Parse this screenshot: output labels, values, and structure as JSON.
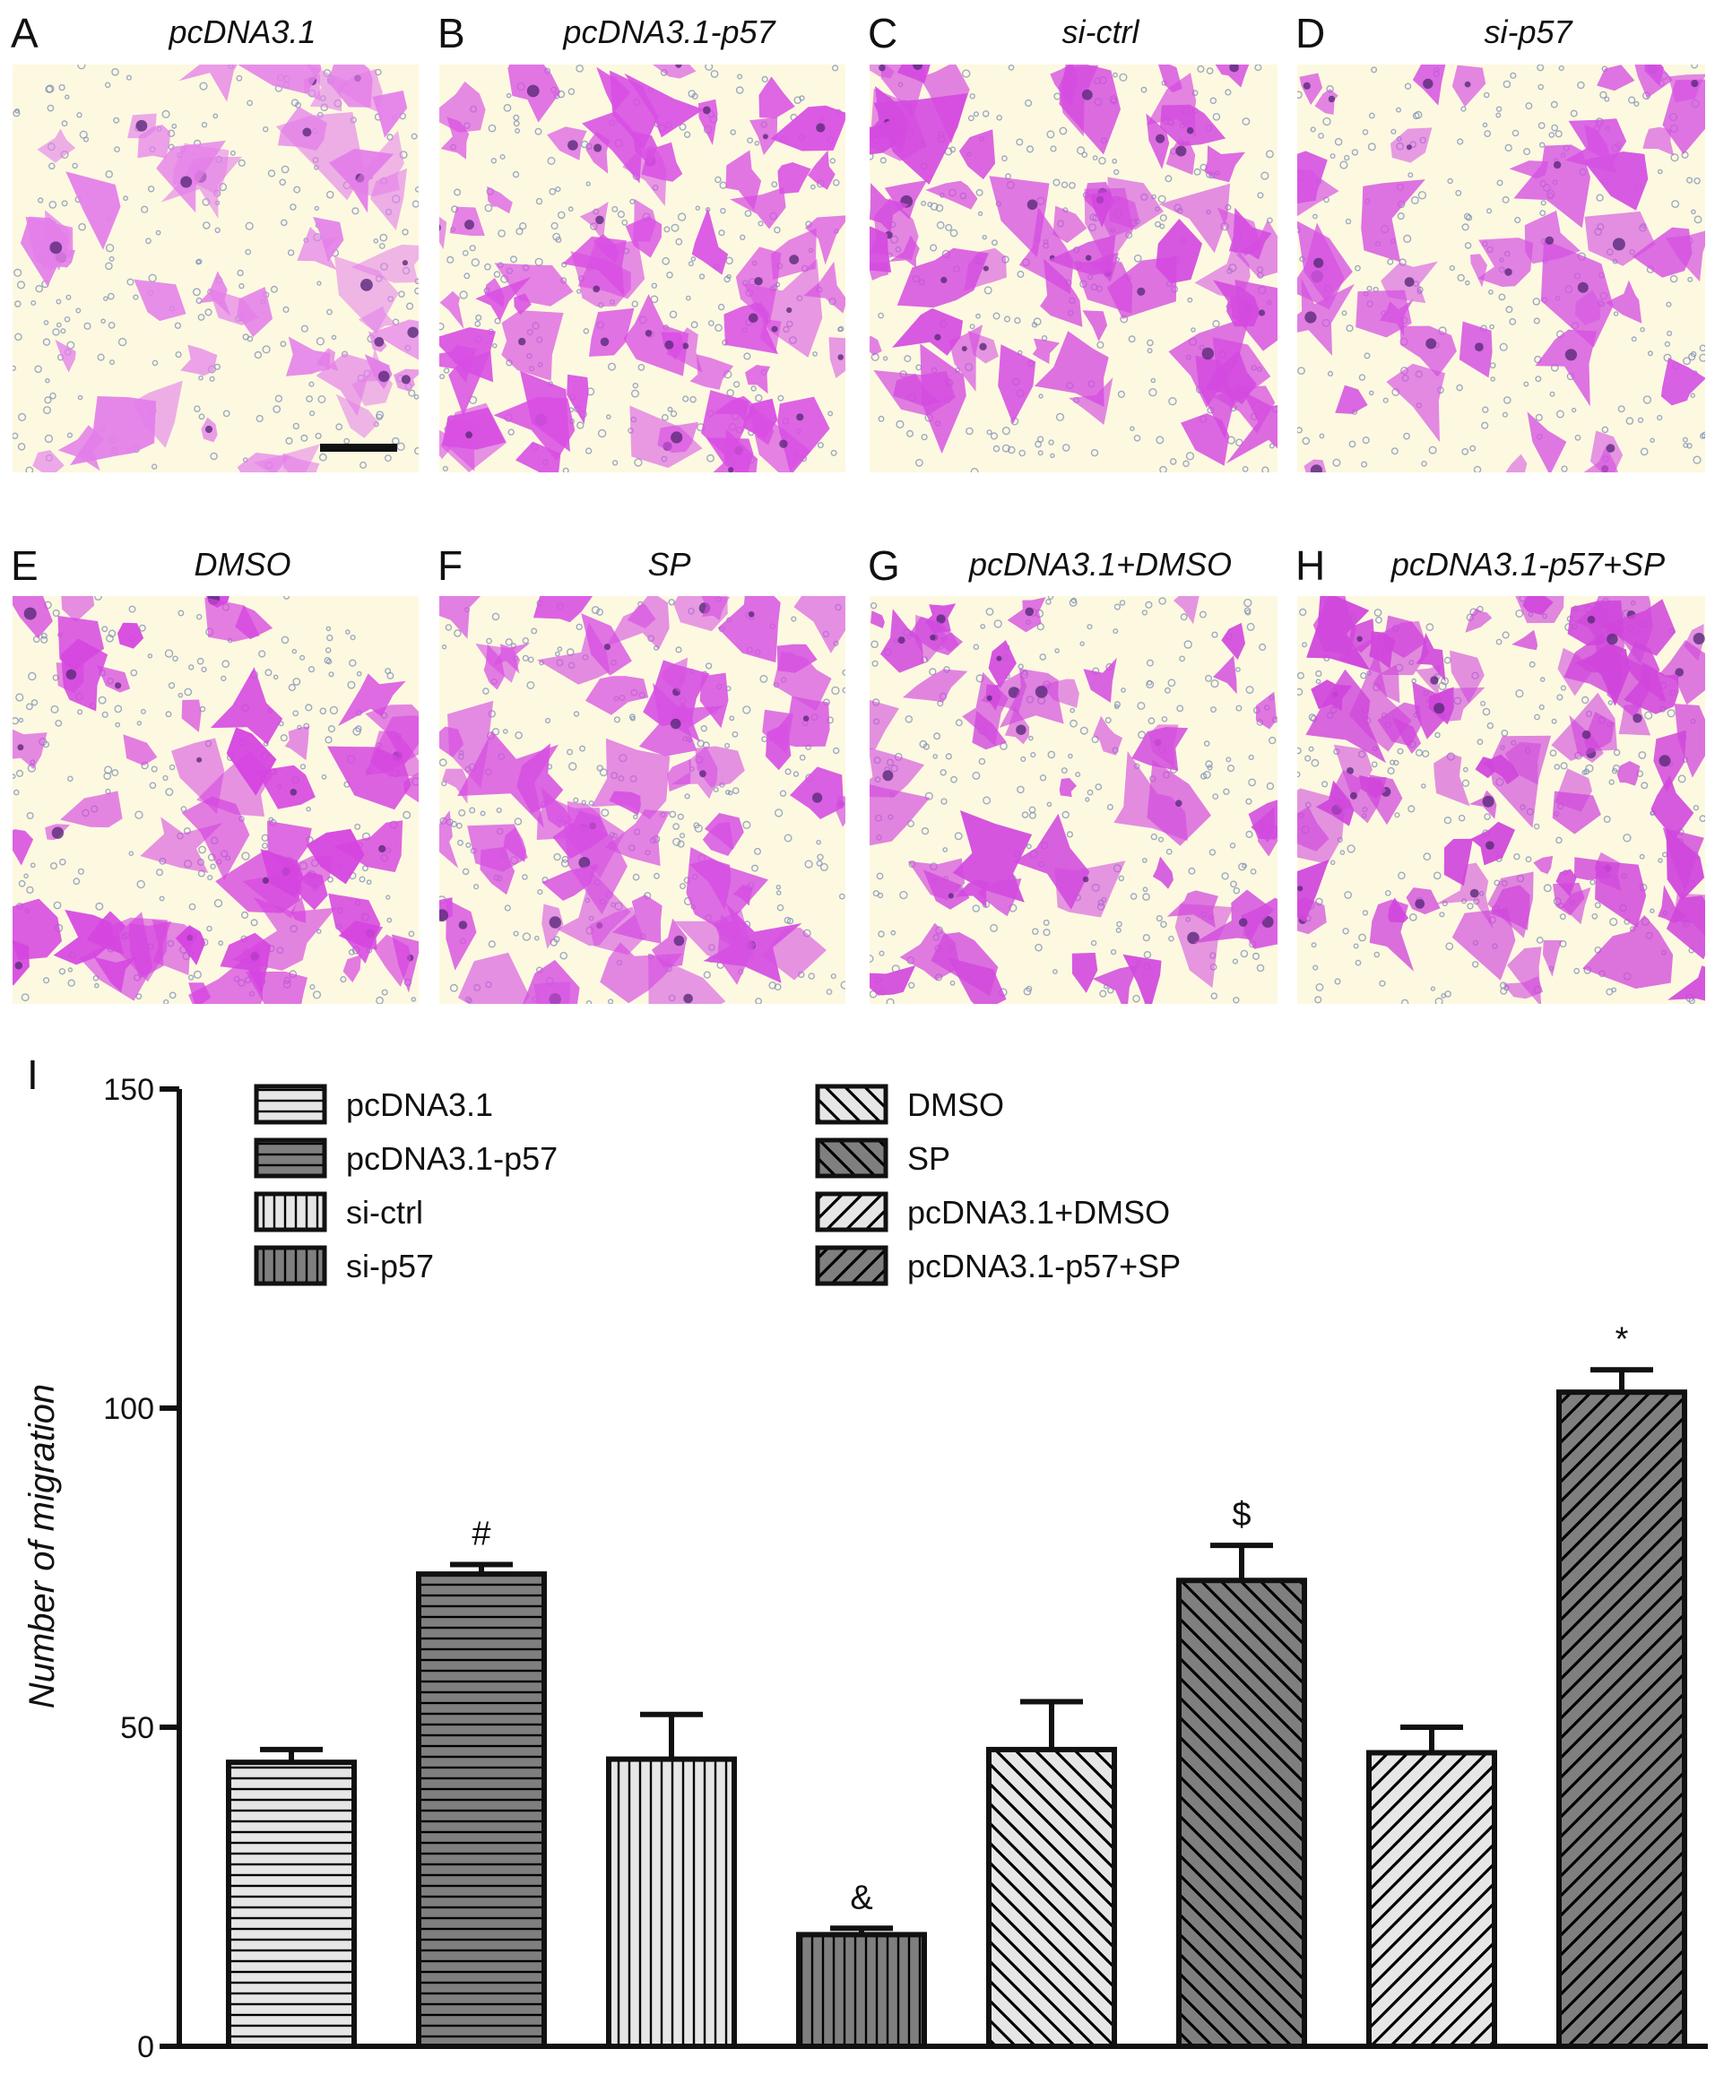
{
  "panels": [
    {
      "letter": "A",
      "title": "pcDNA3.1",
      "density": 0.45,
      "stain": "#e37ee9"
    },
    {
      "letter": "B",
      "title": "pcDNA3.1-p57",
      "density": 0.75,
      "stain": "#d84ee3"
    },
    {
      "letter": "C",
      "title": "si-ctrl",
      "density": 0.7,
      "stain": "#d44ae0"
    },
    {
      "letter": "D",
      "title": "si-p57",
      "density": 0.35,
      "stain": "#d552e2"
    },
    {
      "letter": "E",
      "title": "DMSO",
      "density": 0.55,
      "stain": "#d544e0"
    },
    {
      "letter": "F",
      "title": "SP",
      "density": 0.7,
      "stain": "#d650e2"
    },
    {
      "letter": "G",
      "title": "pcDNA3.1+DMSO",
      "density": 0.45,
      "stain": "#d24ade"
    },
    {
      "letter": "H",
      "title": "pcDNA3.1-p57+SP",
      "density": 0.95,
      "stain": "#d046dc"
    }
  ],
  "micro_colors": {
    "background": "#fdf9e0",
    "pore": "#7d8fb8",
    "dark_stain": "#5a2a7a"
  },
  "chart_data": {
    "type": "bar",
    "panel_letter": "I",
    "ylabel": "Number of migration",
    "ylim": [
      0,
      150
    ],
    "yticks": [
      0,
      50,
      100,
      150
    ],
    "categories": [
      "pcDNA3.1",
      "pcDNA3.1-p57",
      "si-ctrl",
      "si-p57",
      "DMSO",
      "SP",
      "pcDNA3.1+DMSO",
      "pcDNA3.1-p57+SP"
    ],
    "values": [
      44.5,
      74,
      45,
      17.5,
      46.5,
      73,
      46,
      102.5
    ],
    "errors": [
      2,
      1.5,
      7,
      1,
      7.5,
      5.5,
      4,
      3.5
    ],
    "annotations": [
      "",
      "#",
      "",
      "&",
      "",
      "$",
      "",
      "*"
    ],
    "fills": [
      "#e6e6e6",
      "#7f7f7f",
      "#e6e6e6",
      "#7f7f7f",
      "#e6e6e6",
      "#7f7f7f",
      "#e6e6e6",
      "#7f7f7f"
    ],
    "patterns": [
      "horizontal",
      "horizontal",
      "vertical",
      "vertical",
      "backslash",
      "backslash",
      "slash",
      "slash"
    ],
    "legend": [
      {
        "label": "pcDNA3.1",
        "col": 0
      },
      {
        "label": "pcDNA3.1-p57",
        "col": 0
      },
      {
        "label": "si-ctrl",
        "col": 0
      },
      {
        "label": "si-p57",
        "col": 0
      },
      {
        "label": "DMSO",
        "col": 1
      },
      {
        "label": "SP",
        "col": 1
      },
      {
        "label": "pcDNA3.1+DMSO",
        "col": 1
      },
      {
        "label": "pcDNA3.1-p57+SP",
        "col": 1
      }
    ],
    "grid": false,
    "legend_position": "top"
  }
}
